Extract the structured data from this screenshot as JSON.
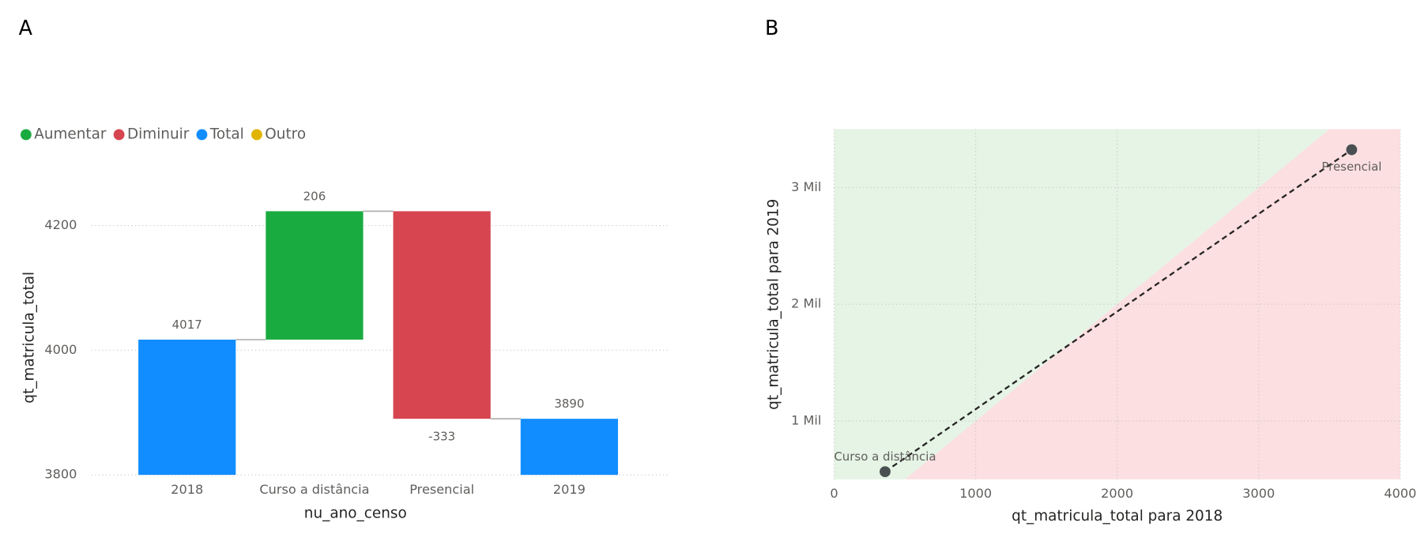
{
  "charts": [
    {
      "panel": "A",
      "type": "waterfall",
      "categories": [
        "2018",
        "Curso a distância",
        "Presencial",
        "2019"
      ],
      "series": [
        {
          "name": "Aumentar",
          "color": "#1aab40",
          "values": [
            null,
            206,
            null,
            null
          ]
        },
        {
          "name": "Diminuir",
          "color": "#d64550",
          "values": [
            null,
            null,
            -333,
            null
          ]
        },
        {
          "name": "Total",
          "color": "#118dff",
          "values": [
            4017,
            null,
            null,
            3890
          ]
        },
        {
          "name": "Outro",
          "color": "#e0b400",
          "values": [
            null,
            null,
            null,
            null
          ]
        }
      ],
      "x_label": "nu_ano_censo",
      "y_label": "qt_matricula_total",
      "ylim": [
        3800,
        4270
      ],
      "yticks": [
        3800,
        4000,
        4200
      ],
      "grid": true
    },
    {
      "panel": "B",
      "type": "scatter",
      "x": [
        360,
        3657
      ],
      "values": [
        566,
        3324
      ],
      "point_labels": [
        "Curso a distância",
        "Presencial"
      ],
      "color": "#4a4f52",
      "x_label": "qt_matricula_total para 2018",
      "y_label": "qt_matricula_total para 2019",
      "xlim": [
        0,
        4000
      ],
      "xticks": [
        0,
        1000,
        2000,
        3000,
        4000
      ],
      "ylim": [
        500,
        3500
      ],
      "yticks": [
        {
          "value": 1000,
          "label": "1 Mil"
        },
        {
          "value": 2000,
          "label": "2 Mil"
        },
        {
          "value": 3000,
          "label": "3 Mil"
        }
      ],
      "grid": true,
      "above_color": "#e5f4e5",
      "below_color": "#fcdfe0"
    }
  ]
}
